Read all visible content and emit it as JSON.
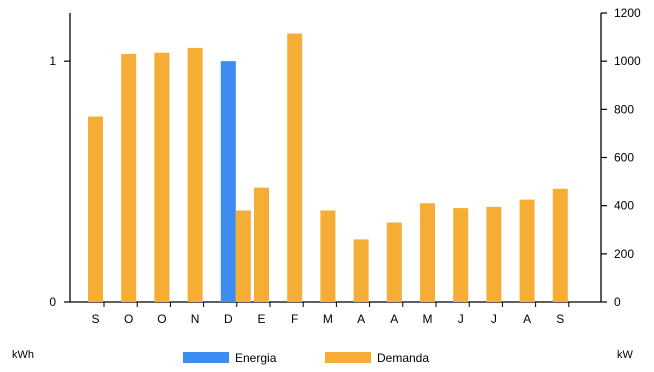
{
  "chart_data": {
    "type": "bar",
    "categories": [
      "S",
      "O",
      "O",
      "N",
      "D",
      "E",
      "F",
      "M",
      "A",
      "A",
      "M",
      "J",
      "J",
      "A",
      "S"
    ],
    "series": [
      {
        "name": "Energia",
        "axis": "left",
        "color": "#3d8df0",
        "values": [
          null,
          null,
          null,
          null,
          1,
          null,
          null,
          null,
          null,
          null,
          null,
          null,
          null,
          null,
          null
        ]
      },
      {
        "name": "Demanda",
        "axis": "right",
        "color": "#f6ad36",
        "values": [
          770,
          1030,
          1035,
          1055,
          380,
          475,
          1115,
          380,
          260,
          330,
          410,
          390,
          395,
          425,
          470
        ]
      }
    ],
    "left_axis": {
      "label": "kWh",
      "ylim": [
        0,
        1.2
      ],
      "ticks": [
        0,
        1
      ],
      "tick_labels": [
        "0",
        "1"
      ]
    },
    "right_axis": {
      "label": "kW",
      "ylim": [
        0,
        1200
      ],
      "ticks": [
        0,
        200,
        400,
        600,
        800,
        1000,
        1200
      ],
      "tick_labels": [
        "0",
        "200",
        "400",
        "600",
        "800",
        "1000",
        "1200"
      ]
    },
    "grid": false,
    "legend": {
      "position": "bottom-center",
      "entries": [
        "Energia",
        "Demanda"
      ]
    }
  }
}
